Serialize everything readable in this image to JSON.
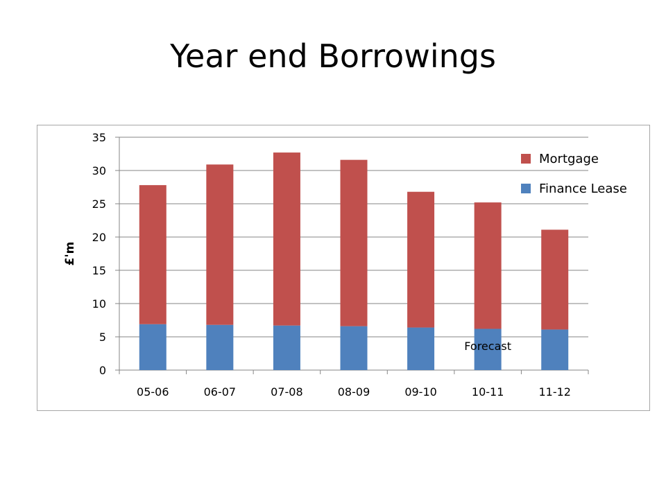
{
  "slide": {
    "title": "Year end Borrowings"
  },
  "colors": {
    "mortgage": "#c0504d",
    "finance_lease": "#4f81bd",
    "grid": "#868686",
    "axis": "#868686"
  },
  "chart_data": {
    "type": "bar",
    "stacked": true,
    "title": "",
    "xlabel": "",
    "ylabel": "£'m",
    "ylim": [
      0,
      35
    ],
    "yticks": [
      0,
      5,
      10,
      15,
      20,
      25,
      30,
      35
    ],
    "grid": true,
    "legend_position": "top-right",
    "categories": [
      "05-06",
      "06-07",
      "07-08",
      "08-09",
      "09-10",
      "10-11",
      "11-12"
    ],
    "series": [
      {
        "name": "Finance Lease",
        "color": "#4f81bd",
        "values": [
          6.9,
          6.8,
          6.7,
          6.6,
          6.4,
          6.2,
          6.1
        ]
      },
      {
        "name": "Mortgage",
        "color": "#c0504d",
        "values": [
          20.9,
          24.1,
          26.0,
          25.0,
          20.4,
          19.0,
          15.0
        ]
      }
    ],
    "legend_order": [
      "Mortgage",
      "Finance Lease"
    ],
    "annotations": [
      {
        "text": "Forecast",
        "category": "10-11"
      }
    ]
  }
}
